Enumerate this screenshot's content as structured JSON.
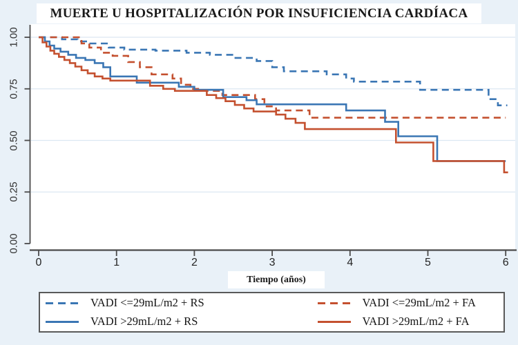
{
  "page": {
    "title": "MUERTE U HOSPITALIZACIÓN POR INSUFICIENCIA CARDÍACA"
  },
  "chart_data": {
    "type": "line",
    "subtype": "kaplan-meier-step",
    "title": "MUERTE U HOSPITALIZACIÓN POR INSUFICIENCIA CARDÍACA",
    "xlabel": "Tiempo (años)",
    "ylabel": "",
    "xlim": [
      0,
      6
    ],
    "ylim": [
      0.0,
      1.0
    ],
    "x_ticks": [
      "0",
      "1",
      "2",
      "3",
      "4",
      "5",
      "6"
    ],
    "y_ticks": [
      "0.00",
      "0.25",
      "0.50",
      "0.75",
      "1.00"
    ],
    "grid": "horizontal-light",
    "legend_position": "bottom-box",
    "colors": {
      "blue": "#3a76b4",
      "red": "#c4502f",
      "axis": "#4a4a4a",
      "gridline": "#dce7f2"
    },
    "series": [
      {
        "name": "VADI <=29mL/m2 + RS",
        "color": "#3a76b4",
        "style": "dashed",
        "points": [
          [
            0,
            1.0
          ],
          [
            0.3,
            0.99
          ],
          [
            0.5,
            0.98
          ],
          [
            0.65,
            0.97
          ],
          [
            0.9,
            0.95
          ],
          [
            1.1,
            0.94
          ],
          [
            1.5,
            0.935
          ],
          [
            1.9,
            0.925
          ],
          [
            2.2,
            0.915
          ],
          [
            2.5,
            0.9
          ],
          [
            2.8,
            0.885
          ],
          [
            3.0,
            0.855
          ],
          [
            3.15,
            0.835
          ],
          [
            3.7,
            0.82
          ],
          [
            3.95,
            0.8
          ],
          [
            4.05,
            0.785
          ],
          [
            4.9,
            0.745
          ],
          [
            5.78,
            0.7
          ],
          [
            5.9,
            0.67
          ],
          [
            6.02,
            0.67
          ]
        ]
      },
      {
        "name": "VADI <=29mL/m2 + FA",
        "color": "#c4502f",
        "style": "dashed",
        "points": [
          [
            0,
            1.0
          ],
          [
            0.55,
            0.97
          ],
          [
            0.65,
            0.95
          ],
          [
            0.8,
            0.925
          ],
          [
            0.95,
            0.91
          ],
          [
            1.15,
            0.88
          ],
          [
            1.3,
            0.855
          ],
          [
            1.45,
            0.82
          ],
          [
            1.72,
            0.8
          ],
          [
            1.83,
            0.77
          ],
          [
            1.95,
            0.75
          ],
          [
            2.1,
            0.74
          ],
          [
            2.36,
            0.72
          ],
          [
            2.78,
            0.7
          ],
          [
            2.9,
            0.665
          ],
          [
            3.05,
            0.645
          ],
          [
            3.48,
            0.61
          ],
          [
            6.0,
            0.61
          ]
        ]
      },
      {
        "name": "VADI >29mL/m2 + RS",
        "color": "#3a76b4",
        "style": "solid",
        "points": [
          [
            0,
            1.0
          ],
          [
            0.08,
            0.98
          ],
          [
            0.14,
            0.96
          ],
          [
            0.2,
            0.945
          ],
          [
            0.28,
            0.93
          ],
          [
            0.38,
            0.915
          ],
          [
            0.48,
            0.9
          ],
          [
            0.6,
            0.89
          ],
          [
            0.72,
            0.875
          ],
          [
            0.83,
            0.855
          ],
          [
            0.92,
            0.81
          ],
          [
            1.26,
            0.78
          ],
          [
            1.8,
            0.76
          ],
          [
            2.0,
            0.745
          ],
          [
            2.37,
            0.71
          ],
          [
            2.67,
            0.695
          ],
          [
            2.8,
            0.675
          ],
          [
            3.95,
            0.645
          ],
          [
            4.45,
            0.59
          ],
          [
            4.62,
            0.52
          ],
          [
            5.12,
            0.4
          ],
          [
            6.0,
            0.4
          ]
        ]
      },
      {
        "name": "VADI >29mL/m2 + FA",
        "color": "#c4502f",
        "style": "solid",
        "points": [
          [
            0,
            1.0
          ],
          [
            0.05,
            0.975
          ],
          [
            0.1,
            0.955
          ],
          [
            0.15,
            0.935
          ],
          [
            0.2,
            0.92
          ],
          [
            0.26,
            0.905
          ],
          [
            0.33,
            0.89
          ],
          [
            0.4,
            0.875
          ],
          [
            0.47,
            0.858
          ],
          [
            0.55,
            0.84
          ],
          [
            0.63,
            0.825
          ],
          [
            0.72,
            0.81
          ],
          [
            0.82,
            0.8
          ],
          [
            0.92,
            0.79
          ],
          [
            1.43,
            0.765
          ],
          [
            1.6,
            0.75
          ],
          [
            1.75,
            0.74
          ],
          [
            2.16,
            0.72
          ],
          [
            2.28,
            0.705
          ],
          [
            2.4,
            0.69
          ],
          [
            2.52,
            0.672
          ],
          [
            2.64,
            0.655
          ],
          [
            2.76,
            0.64
          ],
          [
            3.05,
            0.625
          ],
          [
            3.17,
            0.605
          ],
          [
            3.3,
            0.585
          ],
          [
            3.42,
            0.555
          ],
          [
            4.59,
            0.49
          ],
          [
            5.07,
            0.4
          ],
          [
            5.98,
            0.345
          ],
          [
            6.03,
            0.345
          ]
        ]
      }
    ]
  },
  "legend": {
    "items": [
      {
        "label": "VADI <=29mL/m2 + RS",
        "color": "#3a76b4",
        "style": "dashed"
      },
      {
        "label": "VADI <=29mL/m2 + FA",
        "color": "#c4502f",
        "style": "dashed"
      },
      {
        "label": "VADI >29mL/m2 + RS",
        "color": "#3a76b4",
        "style": "solid"
      },
      {
        "label": "VADI >29mL/m2 + FA",
        "color": "#c4502f",
        "style": "solid"
      }
    ]
  }
}
